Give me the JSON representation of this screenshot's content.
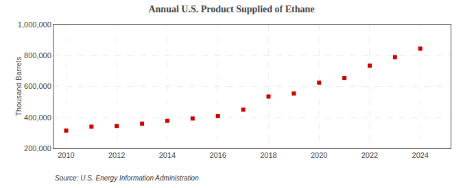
{
  "chart_data": {
    "type": "scatter",
    "title": "Annual U.S. Product Supplied of Ethane",
    "ylabel": "Thousand Barrels",
    "annotations": [
      "Source: U.S. Energy Information Administration"
    ],
    "x": [
      2010,
      2011,
      2012,
      2013,
      2014,
      2015,
      2016,
      2017,
      2018,
      2019,
      2020,
      2021,
      2022,
      2023,
      2024
    ],
    "values": [
      315000,
      340000,
      345000,
      360000,
      378000,
      393000,
      408000,
      450000,
      535000,
      555000,
      625000,
      655000,
      735000,
      790000,
      845000
    ],
    "color": "#cc0000",
    "marker": "square",
    "xlim": [
      2009.5,
      2025.2
    ],
    "xticks": [
      2010,
      2012,
      2014,
      2016,
      2018,
      2020,
      2022,
      2024
    ],
    "ylim": [
      200000,
      1000000
    ],
    "yticks": [
      {
        "value": 200000,
        "label": "200,000"
      },
      {
        "value": 400000,
        "label": "400,000"
      },
      {
        "value": 600000,
        "label": "600,000"
      },
      {
        "value": 800000,
        "label": "800,000"
      },
      {
        "value": 1000000,
        "label": "1,000,000"
      }
    ],
    "grid": true
  }
}
